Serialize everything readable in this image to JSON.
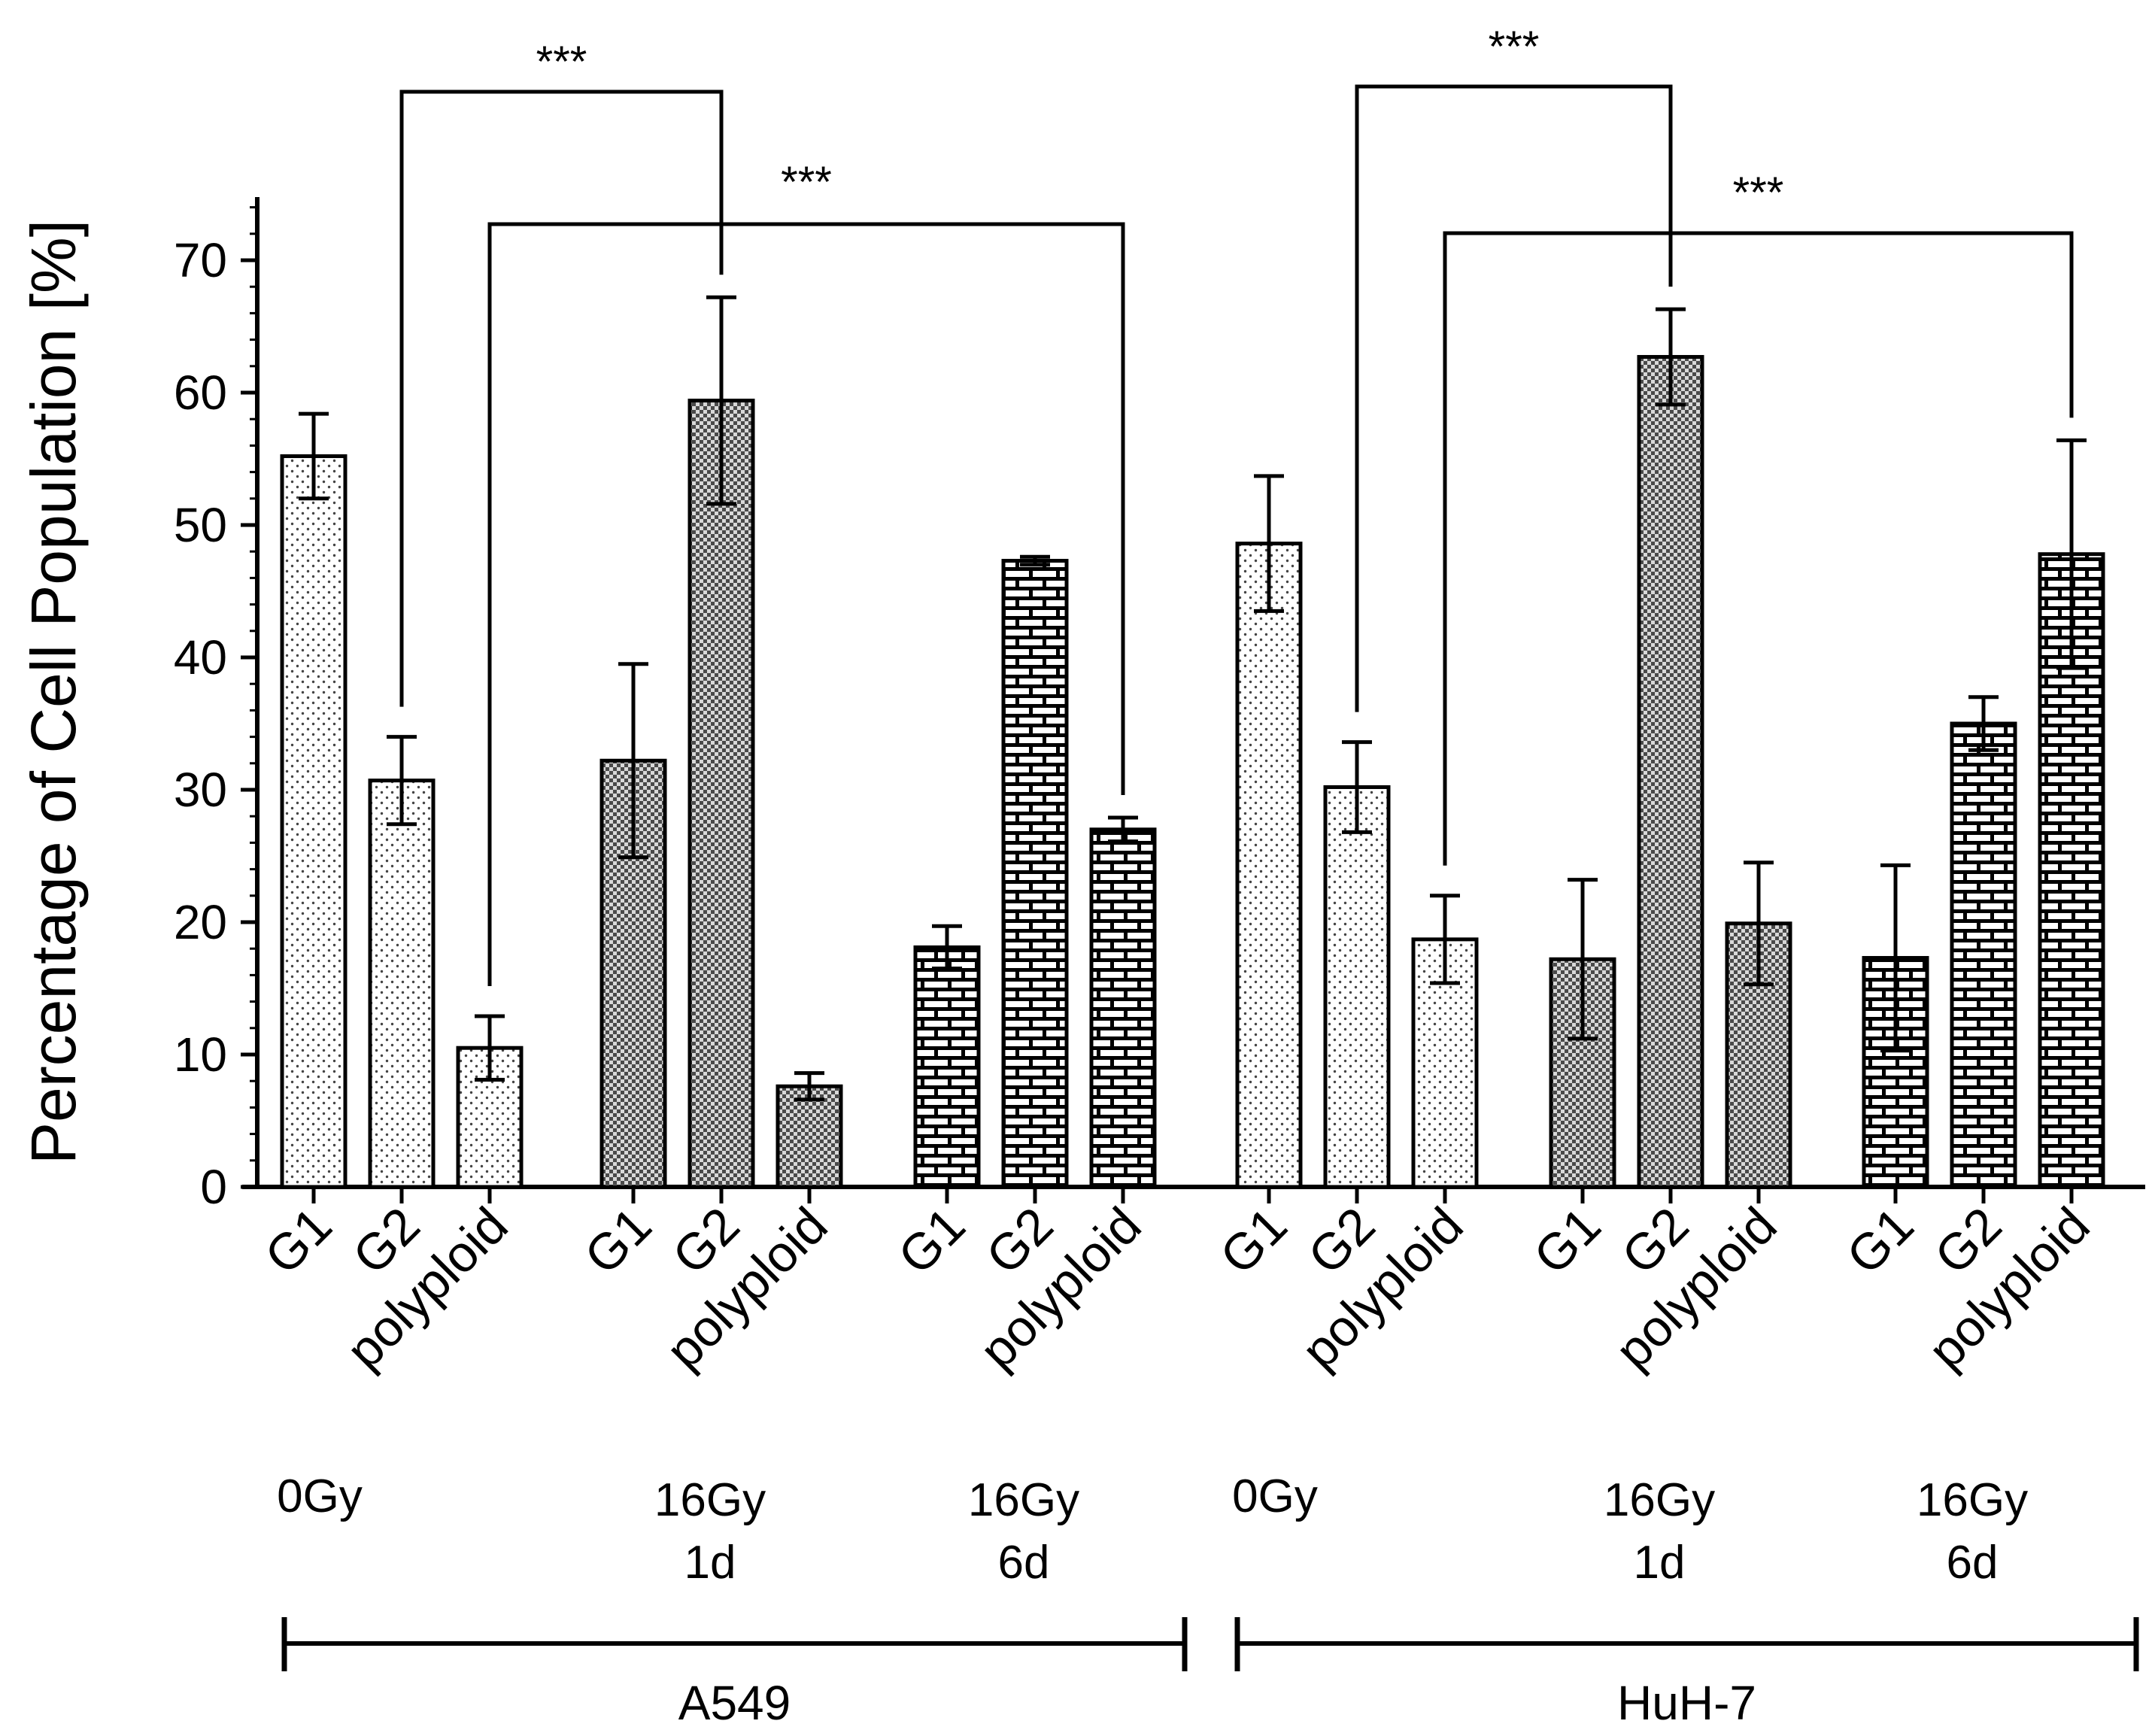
{
  "chart_data": {
    "type": "bar",
    "ylabel": "Percentage of Cell Population [%]",
    "ylim": [
      0,
      75
    ],
    "yticks": [
      0,
      10,
      20,
      30,
      40,
      50,
      60,
      70
    ],
    "grid": false,
    "cell_lines": [
      {
        "name": "A549",
        "conditions": [
          {
            "label": "0Gy",
            "label2": "",
            "pattern": "dots",
            "bars": [
              {
                "phase": "G1",
                "value": 55.2,
                "err": 3.2
              },
              {
                "phase": "G2",
                "value": 30.7,
                "err": 3.3
              },
              {
                "phase": "polyploid",
                "value": 10.5,
                "err": 2.4
              }
            ]
          },
          {
            "label": "16Gy",
            "label2": "1d",
            "pattern": "checker",
            "bars": [
              {
                "phase": "G1",
                "value": 32.2,
                "err": 7.3
              },
              {
                "phase": "G2",
                "value": 59.4,
                "err": 7.8
              },
              {
                "phase": "polyploid",
                "value": 7.6,
                "err": 1.0
              }
            ]
          },
          {
            "label": "16Gy",
            "label2": "6d",
            "pattern": "brick",
            "bars": [
              {
                "phase": "G1",
                "value": 18.1,
                "err": 1.6
              },
              {
                "phase": "G2",
                "value": 47.3,
                "err": 0.3
              },
              {
                "phase": "polyploid",
                "value": 27.0,
                "err": 0.9
              }
            ]
          }
        ]
      },
      {
        "name": "HuH-7",
        "conditions": [
          {
            "label": "0Gy",
            "label2": "",
            "pattern": "dots",
            "bars": [
              {
                "phase": "G1",
                "value": 48.6,
                "err": 5.1
              },
              {
                "phase": "G2",
                "value": 30.2,
                "err": 3.4
              },
              {
                "phase": "polyploid",
                "value": 18.7,
                "err": 3.3
              }
            ]
          },
          {
            "label": "16Gy",
            "label2": "1d",
            "pattern": "checker",
            "bars": [
              {
                "phase": "G1",
                "value": 17.2,
                "err": 6.0
              },
              {
                "phase": "G2",
                "value": 62.7,
                "err": 3.6
              },
              {
                "phase": "polyploid",
                "value": 19.9,
                "err": 4.6
              }
            ]
          },
          {
            "label": "16Gy",
            "label2": "6d",
            "pattern": "brick",
            "bars": [
              {
                "phase": "G1",
                "value": 17.3,
                "err": 7.0
              },
              {
                "phase": "G2",
                "value": 35.0,
                "err": 2.0
              },
              {
                "phase": "polyploid",
                "value": 47.8,
                "err": 8.6
              }
            ]
          }
        ]
      }
    ],
    "significance": [
      {
        "cell_line": "A549",
        "from": [
          0,
          1
        ],
        "to": [
          1,
          1
        ],
        "label": "***"
      },
      {
        "cell_line": "A549",
        "from": [
          0,
          2
        ],
        "to": [
          2,
          2
        ],
        "label": "***"
      },
      {
        "cell_line": "HuH-7",
        "from": [
          0,
          1
        ],
        "to": [
          1,
          1
        ],
        "label": "***"
      },
      {
        "cell_line": "HuH-7",
        "from": [
          0,
          2
        ],
        "to": [
          2,
          2
        ],
        "label": "***"
      }
    ]
  }
}
